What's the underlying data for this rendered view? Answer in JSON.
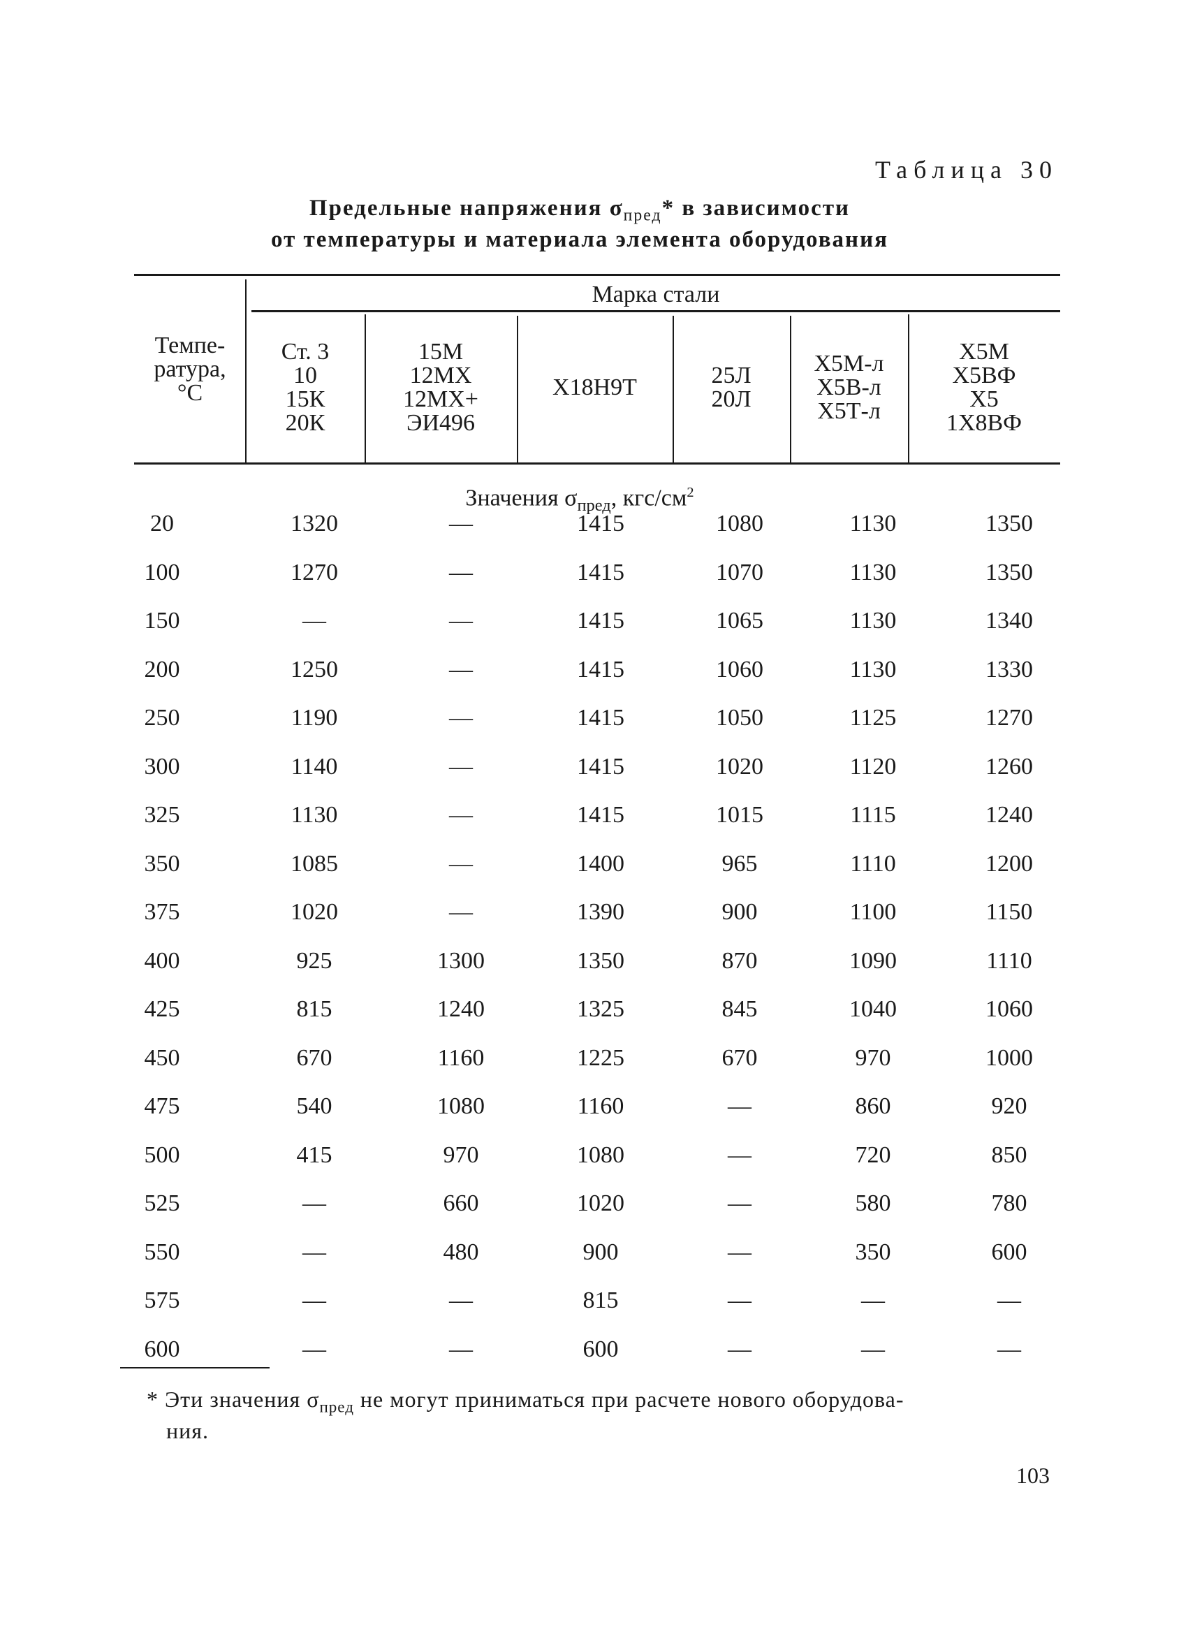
{
  "table_label": "Таблица 30",
  "title": {
    "line1_pre": "Предельные напряжения σ",
    "line1_sub": "пред",
    "line1_post": "* в зависимости",
    "line2": "от температуры и материала элемента оборудования"
  },
  "header": {
    "temperature": [
      "Темпе-",
      "ратура,",
      "°C"
    ],
    "group": "Марка стали",
    "columns": [
      [
        "Ст. 3",
        "10",
        "15К",
        "20К"
      ],
      [
        "15М",
        "12МХ",
        "12МХ+",
        "ЭИ496"
      ],
      [
        "Х18Н9Т"
      ],
      [
        "25Л",
        "20Л"
      ],
      [
        "Х5М-л",
        "Х5В-л",
        "Х5Т-л"
      ],
      [
        "Х5М",
        "Х5ВФ",
        "Х5",
        "1Х8ВФ"
      ]
    ]
  },
  "units_row": {
    "pre": "Значения σ",
    "sub": "пред",
    "post": ", кгс/см",
    "sup": "2"
  },
  "rows": [
    [
      "20",
      "1320",
      "—",
      "1415",
      "1080",
      "1130",
      "1350"
    ],
    [
      "100",
      "1270",
      "—",
      "1415",
      "1070",
      "1130",
      "1350"
    ],
    [
      "150",
      "—",
      "—",
      "1415",
      "1065",
      "1130",
      "1340"
    ],
    [
      "200",
      "1250",
      "—",
      "1415",
      "1060",
      "1130",
      "1330"
    ],
    [
      "250",
      "1190",
      "—",
      "1415",
      "1050",
      "1125",
      "1270"
    ],
    [
      "300",
      "1140",
      "—",
      "1415",
      "1020",
      "1120",
      "1260"
    ],
    [
      "325",
      "1130",
      "—",
      "1415",
      "1015",
      "1115",
      "1240"
    ],
    [
      "350",
      "1085",
      "—",
      "1400",
      "965",
      "1110",
      "1200"
    ],
    [
      "375",
      "1020",
      "—",
      "1390",
      "900",
      "1100",
      "1150"
    ],
    [
      "400",
      "925",
      "1300",
      "1350",
      "870",
      "1090",
      "1110"
    ],
    [
      "425",
      "815",
      "1240",
      "1325",
      "845",
      "1040",
      "1060"
    ],
    [
      "450",
      "670",
      "1160",
      "1225",
      "670",
      "970",
      "1000"
    ],
    [
      "475",
      "540",
      "1080",
      "1160",
      "—",
      "860",
      "920"
    ],
    [
      "500",
      "415",
      "970",
      "1080",
      "—",
      "720",
      "850"
    ],
    [
      "525",
      "—",
      "660",
      "1020",
      "—",
      "580",
      "780"
    ],
    [
      "550",
      "—",
      "480",
      "900",
      "—",
      "350",
      "600"
    ],
    [
      "575",
      "—",
      "—",
      "815",
      "—",
      "—",
      "—"
    ],
    [
      "600",
      "—",
      "—",
      "600",
      "—",
      "—",
      "—"
    ]
  ],
  "footnote": {
    "pre": "* Эти значения σ",
    "sub": "пред",
    "post": " не могут приниматься при расчете нового оборудова-",
    "line2": "ния."
  },
  "page_number": "103"
}
